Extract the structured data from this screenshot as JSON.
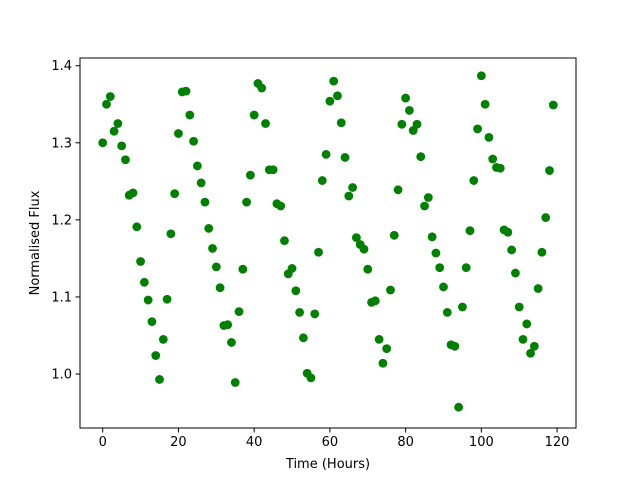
{
  "chart_data": {
    "type": "scatter",
    "title": "",
    "xlabel": "Time (Hours)",
    "ylabel": "Normalised Flux",
    "xlim": [
      -6,
      125
    ],
    "ylim": [
      0.93,
      1.41
    ],
    "xticks": [
      0,
      20,
      40,
      60,
      80,
      100,
      120
    ],
    "yticks": [
      1.0,
      1.1,
      1.2,
      1.3,
      1.4
    ],
    "xtick_labels": [
      "0",
      "20",
      "40",
      "60",
      "80",
      "100",
      "120"
    ],
    "ytick_labels": [
      "1.0",
      "1.1",
      "1.2",
      "1.3",
      "1.4"
    ],
    "grid": false,
    "marker_color": "#008000",
    "series": [
      {
        "x": [
          0,
          1,
          2,
          3,
          4,
          5,
          6,
          7,
          8,
          9,
          10,
          11,
          12,
          13,
          14,
          15,
          16,
          17,
          18,
          19,
          20,
          21,
          22,
          23,
          24,
          25,
          26,
          27,
          28,
          29,
          30,
          31,
          32,
          33,
          34,
          35,
          36,
          37,
          38,
          39,
          40,
          41,
          42,
          43,
          44,
          45,
          46,
          47,
          48,
          49,
          50,
          51,
          52,
          53,
          54,
          55,
          56,
          57,
          58,
          59,
          60,
          61,
          62,
          63,
          64,
          65,
          66,
          67,
          68,
          69,
          70,
          71,
          72,
          73,
          74,
          75,
          76,
          77,
          78,
          79,
          80,
          81,
          82,
          83,
          84,
          85,
          86,
          87,
          88,
          89,
          90,
          91,
          92,
          93,
          94,
          95,
          96,
          97,
          98,
          99,
          100,
          101,
          102,
          103,
          104,
          105,
          106,
          107,
          108,
          109,
          110,
          111,
          112,
          113,
          114,
          115,
          116,
          117,
          118,
          119
        ],
        "y": [
          1.3,
          1.35,
          1.36,
          1.315,
          1.325,
          1.296,
          1.278,
          1.232,
          1.235,
          1.191,
          1.146,
          1.119,
          1.096,
          1.068,
          1.024,
          0.993,
          1.045,
          1.097,
          1.182,
          1.234,
          1.312,
          1.366,
          1.367,
          1.336,
          1.302,
          1.27,
          1.248,
          1.223,
          1.189,
          1.163,
          1.139,
          1.112,
          1.063,
          1.064,
          1.041,
          0.989,
          1.081,
          1.136,
          1.223,
          1.258,
          1.336,
          1.377,
          1.371,
          1.325,
          1.265,
          1.265,
          1.221,
          1.218,
          1.173,
          1.13,
          1.137,
          1.108,
          1.08,
          1.047,
          1.001,
          0.995,
          1.078,
          1.158,
          1.251,
          1.285,
          1.354,
          1.38,
          1.361,
          1.326,
          1.281,
          1.231,
          1.242,
          1.177,
          1.168,
          1.162,
          1.136,
          1.093,
          1.095,
          1.045,
          1.014,
          1.033,
          1.109,
          1.18,
          1.239,
          1.324,
          1.358,
          1.342,
          1.316,
          1.324,
          1.282,
          1.218,
          1.229,
          1.178,
          1.157,
          1.138,
          1.113,
          1.08,
          1.038,
          1.036,
          0.957,
          1.087,
          1.138,
          1.186,
          1.251,
          1.318,
          1.387,
          1.35,
          1.307,
          1.279,
          1.268,
          1.267,
          1.187,
          1.184,
          1.161,
          1.131,
          1.087,
          1.045,
          1.065,
          1.027,
          1.036,
          1.111,
          1.158,
          1.203,
          1.264,
          1.349
        ]
      }
    ]
  }
}
